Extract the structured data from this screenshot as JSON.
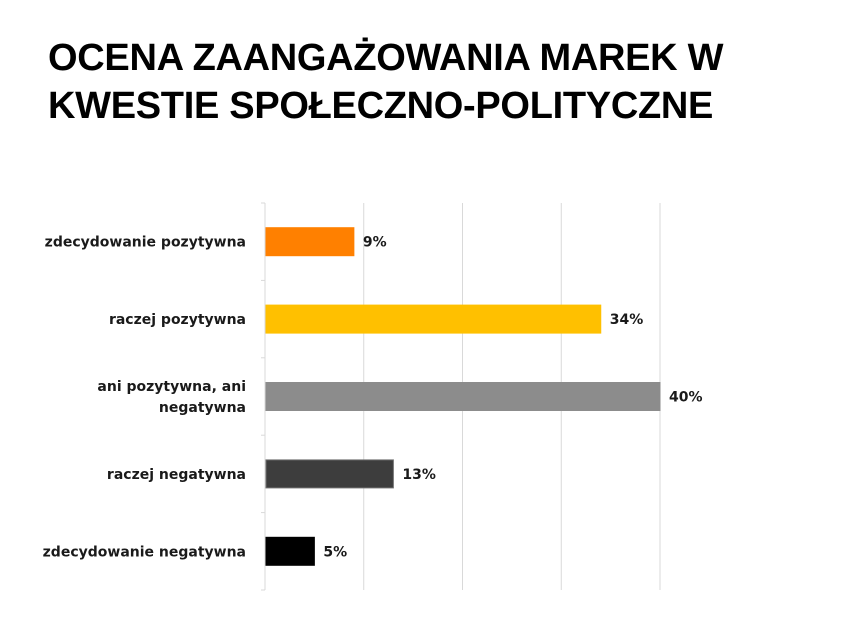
{
  "title_lines": [
    "OCENA ZAANGAŻOWANIA MAREK W",
    "KWESTIE SPOŁECZNO-POLITYCZNE"
  ],
  "chart_data": {
    "type": "bar",
    "orientation": "horizontal",
    "categories": [
      [
        "zdecydowanie pozytywna"
      ],
      [
        "raczej pozytywna"
      ],
      [
        "ani pozytywna, ani",
        "negatywna"
      ],
      [
        "raczej negatywna"
      ],
      [
        "zdecydowanie negatywna"
      ]
    ],
    "values": [
      9,
      34,
      40,
      13,
      5
    ],
    "value_labels": [
      "9%",
      "34%",
      "40%",
      "13%",
      "5%"
    ],
    "colors": [
      "#ff8000",
      "#ffc000",
      "#8c8c8c",
      "#3d3d3d",
      "#000000"
    ],
    "xlim": [
      0,
      40
    ],
    "vertical_grid": true,
    "legend": "none"
  }
}
